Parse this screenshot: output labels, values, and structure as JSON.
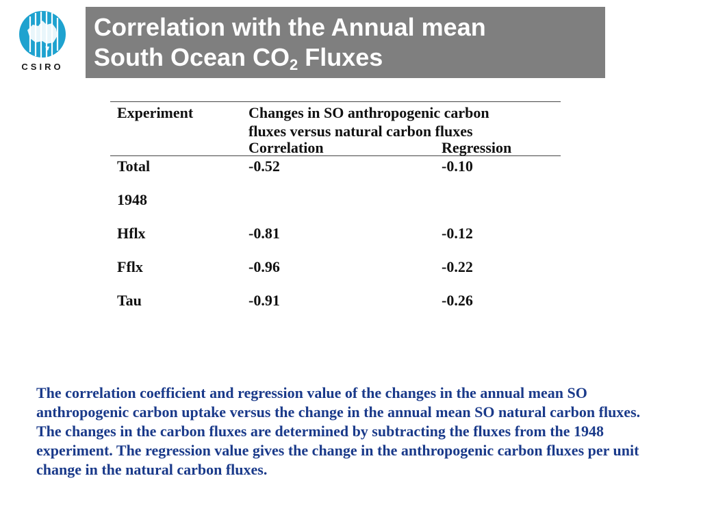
{
  "logo": {
    "text": "CSIRO"
  },
  "title": {
    "line1": "Correlation with the Annual mean",
    "line2_prefix": "South Ocean CO",
    "line2_sub": "2",
    "line2_suffix": " Fluxes"
  },
  "table": {
    "col1_header": "Experiment",
    "group_header_line1": "Changes in SO anthropogenic carbon",
    "group_header_line2": "fluxes versus natural carbon fluxes",
    "sub_headers": [
      "Correlation",
      "Regression"
    ],
    "rows": [
      {
        "experiment": "Total",
        "correlation": "-0.52",
        "regression": "-0.10"
      },
      {
        "experiment": "1948",
        "correlation": "",
        "regression": ""
      },
      {
        "experiment": "Hflx",
        "correlation": "-0.81",
        "regression": "-0.12"
      },
      {
        "experiment": "Fflx",
        "correlation": "-0.96",
        "regression": "-0.22"
      },
      {
        "experiment": "Tau",
        "correlation": "-0.91",
        "regression": "-0.26"
      }
    ]
  },
  "caption": "The correlation coefficient and regression value of the changes in the annual mean SO anthropogenic carbon uptake versus the change in the annual mean SO natural carbon fluxes.  The changes in the carbon fluxes are determined by subtracting the fluxes from the 1948 experiment. The regression value gives the change in the anthropogenic carbon fluxes per unit change in the natural carbon fluxes.",
  "colors": {
    "title_bg": "#7f7f7f",
    "caption_text": "#1a3a8a",
    "logo_blue": "#1ea2cf"
  }
}
